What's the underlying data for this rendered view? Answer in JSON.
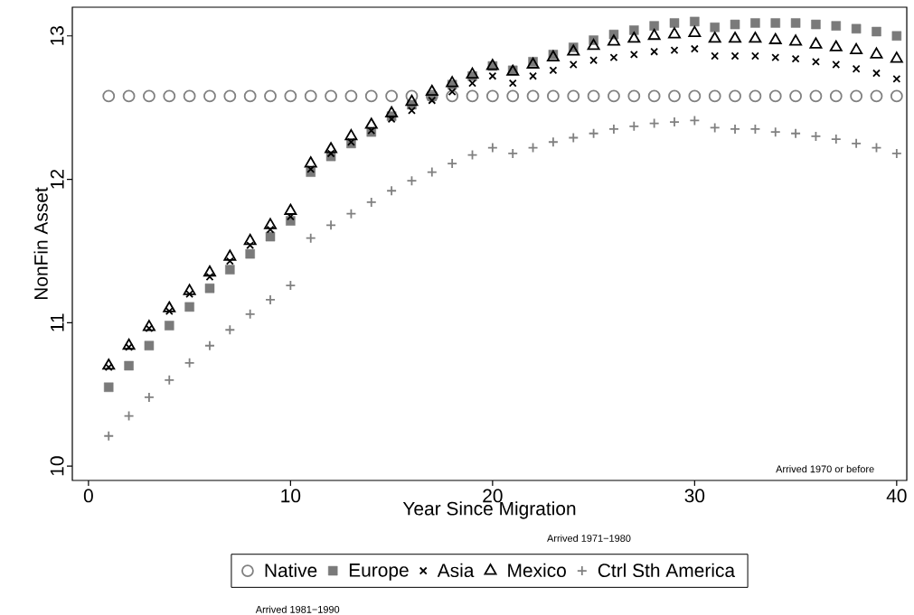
{
  "chart_data": {
    "type": "scatter",
    "xlabel": "Year Since Migration",
    "ylabel": "NonFin Asset",
    "x": [
      1,
      2,
      3,
      4,
      5,
      6,
      7,
      8,
      9,
      10,
      11,
      12,
      13,
      14,
      15,
      16,
      17,
      18,
      19,
      20,
      21,
      22,
      23,
      24,
      25,
      26,
      27,
      28,
      29,
      30,
      31,
      32,
      33,
      34,
      35,
      36,
      37,
      38,
      39,
      40
    ],
    "xlim": [
      -0.8,
      40.5
    ],
    "xticks": [
      0,
      10,
      20,
      30,
      40
    ],
    "ylim": [
      9.9,
      13.2
    ],
    "yticks": [
      10,
      11,
      12,
      13
    ],
    "grid": false,
    "legend": "bottom",
    "series": [
      {
        "name": "Native",
        "color": "#808080",
        "marker": "circle",
        "values": [
          12.58,
          12.58,
          12.58,
          12.58,
          12.58,
          12.58,
          12.58,
          12.58,
          12.58,
          12.58,
          12.58,
          12.58,
          12.58,
          12.58,
          12.58,
          12.58,
          12.58,
          12.58,
          12.58,
          12.58,
          12.58,
          12.58,
          12.58,
          12.58,
          12.58,
          12.58,
          12.58,
          12.58,
          12.58,
          12.58,
          12.58,
          12.58,
          12.58,
          12.58,
          12.58,
          12.58,
          12.58,
          12.58,
          12.58,
          12.58
        ]
      },
      {
        "name": "Europe",
        "color": "#7a7a7a",
        "marker": "square",
        "values": [
          10.55,
          10.7,
          10.84,
          10.98,
          11.11,
          11.24,
          11.37,
          11.48,
          11.6,
          11.71,
          12.05,
          12.16,
          12.25,
          12.33,
          12.44,
          12.52,
          12.58,
          12.66,
          12.72,
          12.79,
          12.76,
          12.82,
          12.87,
          12.92,
          12.97,
          13.01,
          13.04,
          13.07,
          13.09,
          13.1,
          13.06,
          13.08,
          13.09,
          13.09,
          13.09,
          13.08,
          13.07,
          13.05,
          13.03,
          13.0
        ]
      },
      {
        "name": "Asia",
        "color": "#000000",
        "marker": "cross",
        "values": [
          10.69,
          10.83,
          10.96,
          11.08,
          11.2,
          11.32,
          11.43,
          11.54,
          11.65,
          11.74,
          12.07,
          12.18,
          12.26,
          12.34,
          12.42,
          12.48,
          12.55,
          12.61,
          12.67,
          12.72,
          12.67,
          12.72,
          12.76,
          12.8,
          12.83,
          12.85,
          12.87,
          12.89,
          12.9,
          12.91,
          12.86,
          12.86,
          12.86,
          12.85,
          12.84,
          12.82,
          12.8,
          12.77,
          12.74,
          12.7
        ]
      },
      {
        "name": "Mexico",
        "color": "#000000",
        "marker": "triangle",
        "values": [
          10.7,
          10.84,
          10.97,
          11.1,
          11.22,
          11.35,
          11.46,
          11.57,
          11.68,
          11.78,
          12.11,
          12.21,
          12.3,
          12.38,
          12.46,
          12.54,
          12.61,
          12.67,
          12.73,
          12.79,
          12.75,
          12.8,
          12.85,
          12.89,
          12.93,
          12.96,
          12.98,
          13.0,
          13.01,
          13.02,
          12.98,
          12.98,
          12.98,
          12.97,
          12.96,
          12.94,
          12.92,
          12.9,
          12.87,
          12.84
        ]
      },
      {
        "name": "Ctrl Sth America",
        "color": "#808080",
        "marker": "plus",
        "values": [
          10.21,
          10.35,
          10.48,
          10.6,
          10.72,
          10.84,
          10.95,
          11.06,
          11.16,
          11.26,
          11.59,
          11.68,
          11.76,
          11.84,
          11.92,
          11.99,
          12.05,
          12.11,
          12.17,
          12.22,
          12.18,
          12.22,
          12.26,
          12.29,
          12.32,
          12.35,
          12.37,
          12.39,
          12.4,
          12.41,
          12.36,
          12.35,
          12.35,
          12.33,
          12.32,
          12.3,
          12.28,
          12.25,
          12.22,
          12.18
        ]
      }
    ],
    "annotations": [
      "Arrived 1970 or before",
      "Arrived 1971−1980",
      "Arrived 1981−1990"
    ]
  }
}
